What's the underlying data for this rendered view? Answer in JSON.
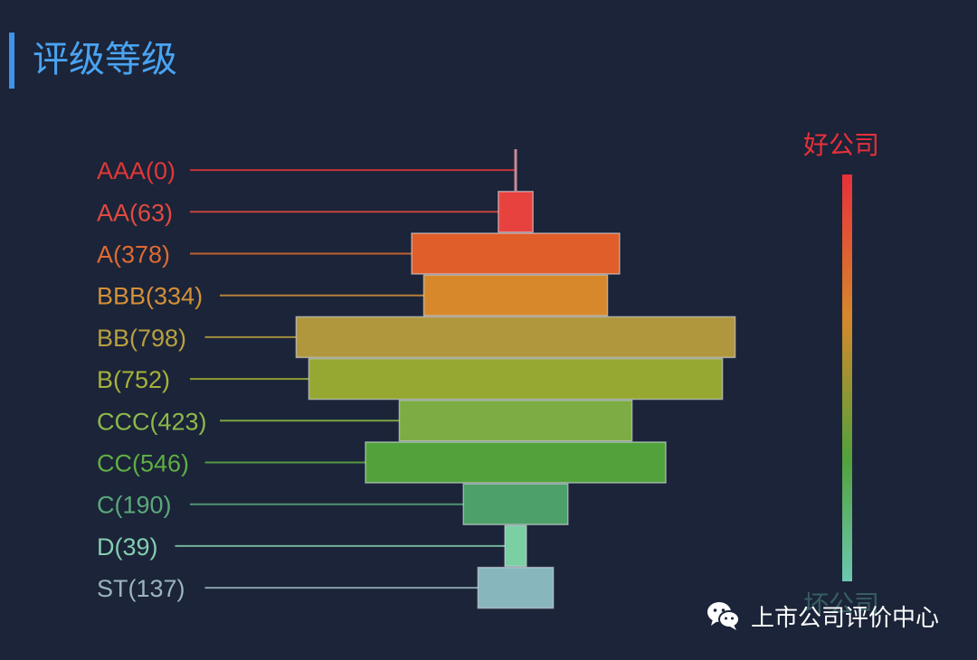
{
  "header": {
    "title": "评级等级"
  },
  "chart_data": {
    "type": "bar",
    "orientation": "horizontal",
    "layout": "centered-stacked (pyramid)",
    "categories": [
      "AAA(0)",
      "AA(63)",
      "A(378)",
      "BBB(334)",
      "BB(798)",
      "B(752)",
      "CCC(423)",
      "CC(546)",
      "C(190)",
      "D(39)",
      "ST(137)"
    ],
    "ratings": [
      "AAA",
      "AA",
      "A",
      "BBB",
      "BB",
      "B",
      "CCC",
      "CC",
      "C",
      "D",
      "ST"
    ],
    "values": [
      0,
      63,
      378,
      334,
      798,
      752,
      423,
      546,
      190,
      39,
      137
    ],
    "colors": [
      "#e0323a",
      "#e8423f",
      "#e05e2a",
      "#d6882b",
      "#b0963c",
      "#96a832",
      "#7cac43",
      "#52a23c",
      "#4ea06a",
      "#7acfa3",
      "#88b6bd"
    ],
    "label_colors": [
      "#e03838",
      "#e24a40",
      "#e06a30",
      "#d4903a",
      "#b8a040",
      "#a6b23a",
      "#8cb84a",
      "#5fae44",
      "#5aa87a",
      "#84cdb0",
      "#9ab4be"
    ],
    "scale": {
      "top_label": "好公司",
      "bottom_label": "坏公司",
      "top_color": "#e8303a",
      "bottom_color": "#6cc7b0"
    }
  },
  "watermark": {
    "text": "上市公司评价中心",
    "icon": "wechat-icon"
  }
}
